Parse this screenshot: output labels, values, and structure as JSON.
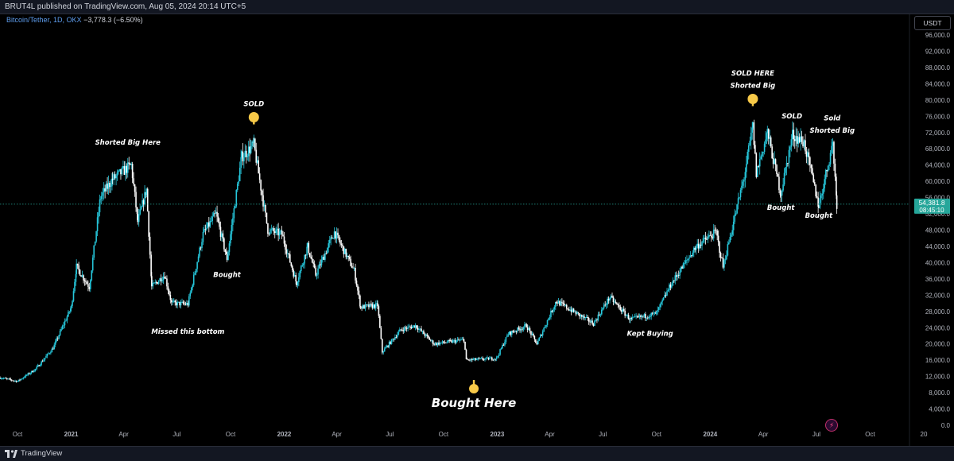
{
  "header": {
    "publisher_line": "BRUT4L published on TradingView.com, Aug 05, 2024 20:14 UTC+5"
  },
  "legend": {
    "symbol": "Bitcoin/Tether, 1D, OKX",
    "change": "−3,778.3 (−6.50%)"
  },
  "currency_badge": "USDT",
  "footer": {
    "brand": "TradingView"
  },
  "colors": {
    "background": "#000000",
    "candles": "#26c6da",
    "price_line": "#26a69a",
    "price_label_bg": "#26a69a",
    "annotation_text": "#ffffff",
    "emoji_hand": "#f7c948"
  },
  "chart_data": {
    "type": "candlestick",
    "title": "",
    "xlabel": "",
    "ylabel": "",
    "ylim": [
      0,
      98000
    ],
    "y_ticks": [
      0,
      4000,
      8000,
      12000,
      16000,
      20000,
      24000,
      28000,
      32000,
      36000,
      40000,
      44000,
      48000,
      52000,
      56000,
      60000,
      64000,
      68000,
      72000,
      76000,
      80000,
      84000,
      88000,
      92000,
      96000
    ],
    "y_tick_labels": [
      "0.0",
      "4,000.0",
      "8,000.0",
      "12,000.0",
      "16,000.0",
      "20,000.0",
      "24,000.0",
      "28,000.0",
      "32,000.0",
      "36,000.0",
      "40,000.0",
      "44,000.0",
      "48,000.0",
      "52,000.0",
      "56,000.0",
      "60,000.0",
      "64,000.0",
      "68,000.0",
      "72,000.0",
      "76,000.0",
      "80,000.0",
      "84,000.0",
      "88,000.0",
      "92,000.0",
      "96,000.0"
    ],
    "x_range": [
      "2020-09-01",
      "2025-01-01"
    ],
    "x_ticks": [
      {
        "date": "2020-10-01",
        "label": "Oct",
        "bold": false
      },
      {
        "date": "2021-01-01",
        "label": "2021",
        "bold": true
      },
      {
        "date": "2021-04-01",
        "label": "Apr",
        "bold": false
      },
      {
        "date": "2021-07-01",
        "label": "Jul",
        "bold": false
      },
      {
        "date": "2021-10-01",
        "label": "Oct",
        "bold": false
      },
      {
        "date": "2022-01-01",
        "label": "2022",
        "bold": true
      },
      {
        "date": "2022-04-01",
        "label": "Apr",
        "bold": false
      },
      {
        "date": "2022-07-01",
        "label": "Jul",
        "bold": false
      },
      {
        "date": "2022-10-01",
        "label": "Oct",
        "bold": false
      },
      {
        "date": "2023-01-01",
        "label": "2023",
        "bold": true
      },
      {
        "date": "2023-04-01",
        "label": "Apr",
        "bold": false
      },
      {
        "date": "2023-07-01",
        "label": "Jul",
        "bold": false
      },
      {
        "date": "2023-10-01",
        "label": "Oct",
        "bold": false
      },
      {
        "date": "2024-01-01",
        "label": "2024",
        "bold": true
      },
      {
        "date": "2024-04-01",
        "label": "Apr",
        "bold": false
      },
      {
        "date": "2024-07-01",
        "label": "Jul",
        "bold": false
      },
      {
        "date": "2024-10-01",
        "label": "Oct",
        "bold": false
      },
      {
        "date": "2025-01-01",
        "label": "20",
        "bold": false
      }
    ],
    "last_price": {
      "value": 54381.8,
      "label": "54,381.8",
      "countdown": "08:45:10"
    },
    "price_path": [
      {
        "date": "2020-09-01",
        "close": 11700
      },
      {
        "date": "2020-10-01",
        "close": 10800
      },
      {
        "date": "2020-11-01",
        "close": 13800
      },
      {
        "date": "2020-12-01",
        "close": 19000
      },
      {
        "date": "2021-01-01",
        "close": 29000
      },
      {
        "date": "2021-01-10",
        "close": 39000
      },
      {
        "date": "2021-02-01",
        "close": 34000
      },
      {
        "date": "2021-02-20",
        "close": 56000
      },
      {
        "date": "2021-03-13",
        "close": 60500
      },
      {
        "date": "2021-04-14",
        "close": 64000
      },
      {
        "date": "2021-04-25",
        "close": 50000
      },
      {
        "date": "2021-05-10",
        "close": 58000
      },
      {
        "date": "2021-05-19",
        "close": 34000
      },
      {
        "date": "2021-06-10",
        "close": 37000
      },
      {
        "date": "2021-06-22",
        "close": 30000
      },
      {
        "date": "2021-07-20",
        "close": 29800
      },
      {
        "date": "2021-08-15",
        "close": 47000
      },
      {
        "date": "2021-09-06",
        "close": 52000
      },
      {
        "date": "2021-09-25",
        "close": 41000
      },
      {
        "date": "2021-10-20",
        "close": 66000
      },
      {
        "date": "2021-11-10",
        "close": 69000
      },
      {
        "date": "2021-12-04",
        "close": 48000
      },
      {
        "date": "2021-12-28",
        "close": 47000
      },
      {
        "date": "2022-01-22",
        "close": 35000
      },
      {
        "date": "2022-02-10",
        "close": 44000
      },
      {
        "date": "2022-02-24",
        "close": 37000
      },
      {
        "date": "2022-03-28",
        "close": 47500
      },
      {
        "date": "2022-05-01",
        "close": 38000
      },
      {
        "date": "2022-05-12",
        "close": 29000
      },
      {
        "date": "2022-06-10",
        "close": 29500
      },
      {
        "date": "2022-06-18",
        "close": 18000
      },
      {
        "date": "2022-07-20",
        "close": 23500
      },
      {
        "date": "2022-08-14",
        "close": 24500
      },
      {
        "date": "2022-09-15",
        "close": 20000
      },
      {
        "date": "2022-11-05",
        "close": 21000
      },
      {
        "date": "2022-11-09",
        "close": 16000
      },
      {
        "date": "2022-12-31",
        "close": 16500
      },
      {
        "date": "2023-01-20",
        "close": 22500
      },
      {
        "date": "2023-02-20",
        "close": 24500
      },
      {
        "date": "2023-03-10",
        "close": 20000
      },
      {
        "date": "2023-04-12",
        "close": 30500
      },
      {
        "date": "2023-06-15",
        "close": 25000
      },
      {
        "date": "2023-07-13",
        "close": 31500
      },
      {
        "date": "2023-08-17",
        "close": 26000
      },
      {
        "date": "2023-10-01",
        "close": 27500
      },
      {
        "date": "2023-10-25",
        "close": 34500
      },
      {
        "date": "2023-12-08",
        "close": 44000
      },
      {
        "date": "2024-01-11",
        "close": 47500
      },
      {
        "date": "2024-01-23",
        "close": 39000
      },
      {
        "date": "2024-02-28",
        "close": 61000
      },
      {
        "date": "2024-03-14",
        "close": 73500
      },
      {
        "date": "2024-03-20",
        "close": 62000
      },
      {
        "date": "2024-04-08",
        "close": 72000
      },
      {
        "date": "2024-05-01",
        "close": 57000
      },
      {
        "date": "2024-05-21",
        "close": 71500
      },
      {
        "date": "2024-06-10",
        "close": 69500
      },
      {
        "date": "2024-07-05",
        "close": 54000
      },
      {
        "date": "2024-07-29",
        "close": 69500
      },
      {
        "date": "2024-08-05",
        "close": 54381.8
      }
    ],
    "annotations": [
      {
        "text": "Shorted Big Here",
        "date": "2021-04-08",
        "value": 69000,
        "size": "small",
        "emoji": null
      },
      {
        "text": "Missed this bottom",
        "date": "2021-07-20",
        "value": 22500,
        "size": "small",
        "emoji": null
      },
      {
        "text": "Bought",
        "date": "2021-09-25",
        "value": 36500,
        "size": "small",
        "emoji": null
      },
      {
        "text": "SOLD",
        "date": "2021-11-10",
        "value": 78500,
        "size": "small",
        "emoji": "point-down"
      },
      {
        "text": "Bought Here",
        "date": "2022-11-22",
        "value": 4500,
        "size": "large",
        "emoji": "point-up"
      },
      {
        "text": "Kept Buying",
        "date": "2023-09-20",
        "value": 22000,
        "size": "small",
        "emoji": null
      },
      {
        "text": "SOLD HERE",
        "date": "2024-03-14",
        "value": 86000,
        "size": "small",
        "emoji": null
      },
      {
        "text": "Shorted Big",
        "date": "2024-03-14",
        "value": 83000,
        "size": "small",
        "emoji": "point-down"
      },
      {
        "text": "SOLD",
        "date": "2024-05-20",
        "value": 75500,
        "size": "small",
        "emoji": null
      },
      {
        "text": "Sold",
        "date": "2024-07-28",
        "value": 75000,
        "size": "small",
        "emoji": null
      },
      {
        "text": "Shorted Big",
        "date": "2024-07-28",
        "value": 72000,
        "size": "small",
        "emoji": null
      },
      {
        "text": "Bought",
        "date": "2024-05-01",
        "value": 53000,
        "size": "small",
        "emoji": null
      },
      {
        "text": "Bought",
        "date": "2024-07-05",
        "value": 51000,
        "size": "small",
        "emoji": null
      }
    ]
  }
}
